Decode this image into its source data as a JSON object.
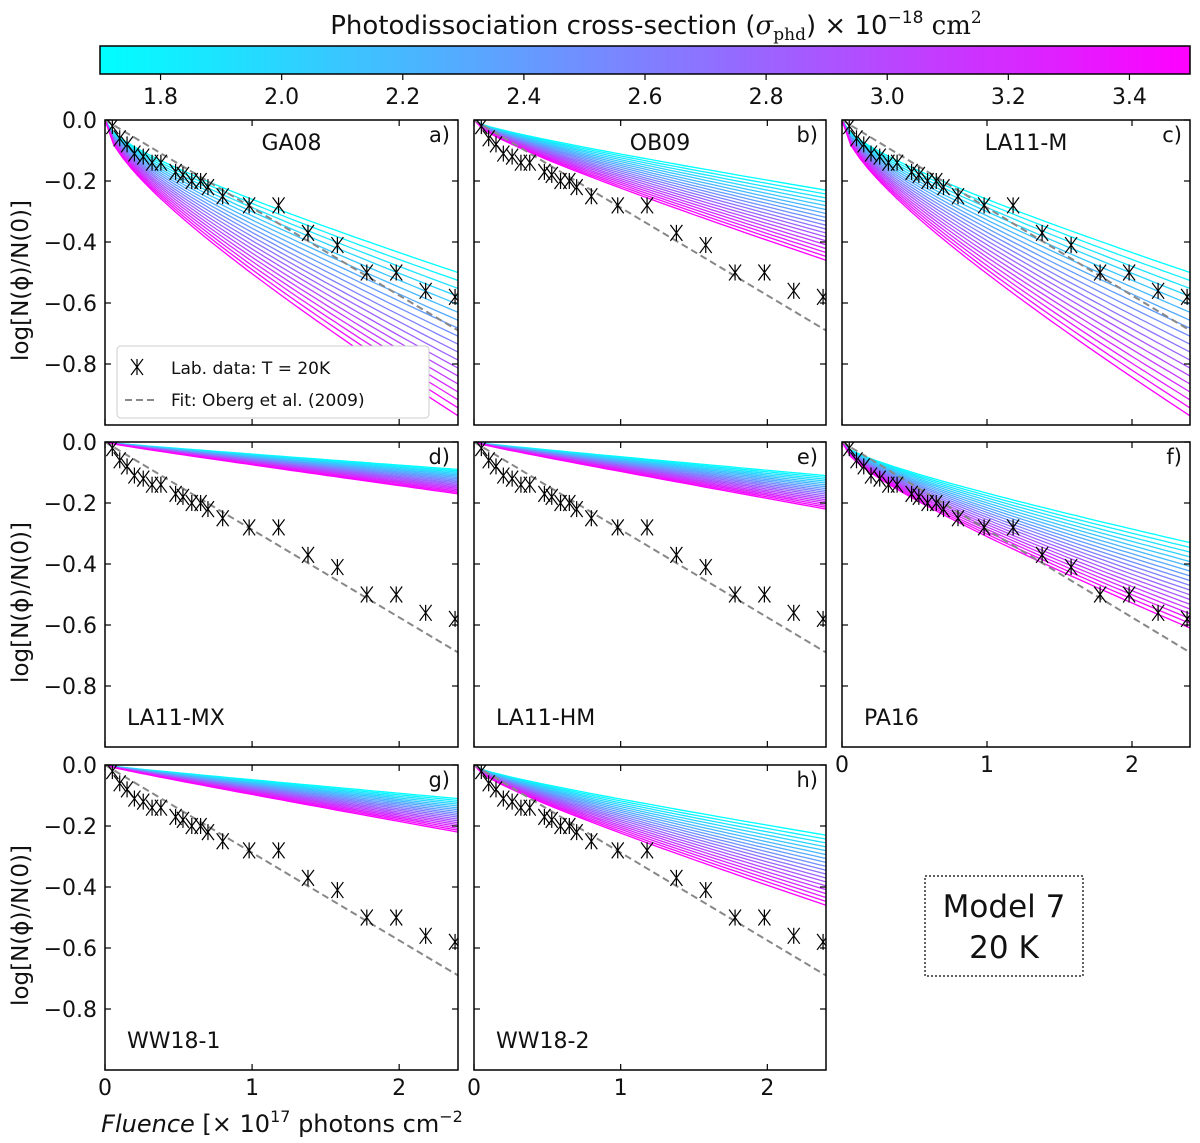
{
  "chart_data": {
    "type": "line",
    "colorbar": {
      "label_prefix": "Photodissociation cross-section (",
      "label_symbol": "σ",
      "label_subscript": "phd",
      "label_suffix": ") × 10",
      "label_exponent": "−18",
      "label_unit": " cm",
      "label_unit_exponent": "2",
      "range": [
        1.7,
        3.5
      ],
      "ticks": [
        "1.8",
        "2.0",
        "2.2",
        "2.4",
        "2.6",
        "2.8",
        "3.0",
        "3.2",
        "3.4"
      ],
      "colors": [
        "#00ffff",
        "#ff00ff"
      ]
    },
    "x_range": [
      0,
      2.4
    ],
    "y_range": [
      -1.0,
      0.0
    ],
    "ylabel": "log[N(ϕ)/N(0)]",
    "xlabel_italic": "Fluence",
    "xlabel_rest": " [× 10",
    "xlabel_exponent": "17",
    "xlabel_unit": " photons cm",
    "xlabel_unit_exponent": "−2",
    "x_ticks": [
      "0",
      "1",
      "2"
    ],
    "y_ticks": [
      "0.0",
      "−0.2",
      "−0.4",
      "−0.6",
      "−0.8"
    ],
    "legend": {
      "data_label": "Lab. data: T = 20K",
      "fit_label": "Fit: Oberg et al. (2009)"
    },
    "lab_data": {
      "x": [
        0.05,
        0.1,
        0.15,
        0.2,
        0.26,
        0.32,
        0.38,
        0.48,
        0.53,
        0.59,
        0.65,
        0.7,
        0.8,
        0.98,
        1.18,
        1.38,
        1.58,
        1.78,
        1.98,
        2.18,
        2.38
      ],
      "y": [
        -0.02,
        -0.06,
        -0.08,
        -0.11,
        -0.12,
        -0.14,
        -0.14,
        -0.17,
        -0.18,
        -0.2,
        -0.2,
        -0.22,
        -0.25,
        -0.28,
        -0.28,
        -0.37,
        -0.41,
        -0.5,
        -0.5,
        -0.56,
        -0.58
      ]
    },
    "fit_line": {
      "x": [
        0,
        2.4
      ],
      "y": [
        0,
        -0.69
      ]
    },
    "panels": [
      {
        "name": "GA08",
        "letter": "a)",
        "label_pos": "top",
        "curves": {
          "end_min": -0.5,
          "end_max": -0.97,
          "curvature": 0.45
        }
      },
      {
        "name": "OB09",
        "letter": "b)",
        "label_pos": "top",
        "curves": {
          "end_min": -0.23,
          "end_max": -0.46,
          "curvature": 0.3
        }
      },
      {
        "name": "LA11-M",
        "letter": "c)",
        "label_pos": "top",
        "curves": {
          "end_min": -0.5,
          "end_max": -0.97,
          "curvature": 0.45
        }
      },
      {
        "name": "LA11-MX",
        "letter": "d)",
        "label_pos": "bottom",
        "curves": {
          "end_min": -0.09,
          "end_max": -0.17,
          "curvature": 0.1
        }
      },
      {
        "name": "LA11-HM",
        "letter": "e)",
        "label_pos": "bottom",
        "curves": {
          "end_min": -0.11,
          "end_max": -0.22,
          "curvature": 0.1
        }
      },
      {
        "name": "PA16",
        "letter": "f)",
        "label_pos": "bottom",
        "curves": {
          "end_min": -0.33,
          "end_max": -0.61,
          "curvature": 0.4
        }
      },
      {
        "name": "WW18-1",
        "letter": "g)",
        "label_pos": "bottom",
        "curves": {
          "end_min": -0.11,
          "end_max": -0.22,
          "curvature": 0.1
        }
      },
      {
        "name": "WW18-2",
        "letter": "h)",
        "label_pos": "bottom",
        "curves": {
          "end_min": -0.23,
          "end_max": -0.46,
          "curvature": 0.3
        }
      }
    ],
    "model_box": {
      "line1": "Model 7",
      "line2": "20 K"
    }
  }
}
